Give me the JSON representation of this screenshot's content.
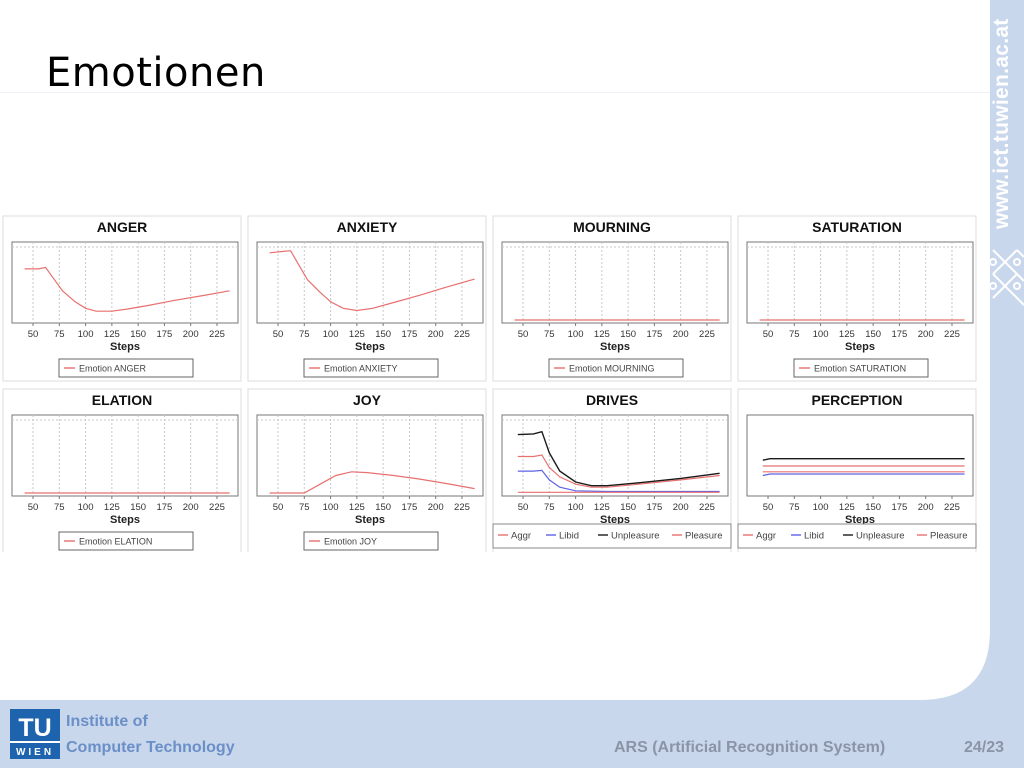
{
  "slide": {
    "title": "Emotionen",
    "side_url": "www.ict.tuwien.ac.at",
    "footer": {
      "institute_line1": "Institute of",
      "institute_line2": "Computer Technology",
      "system": "ARS (Artificial Recognition System)",
      "page": "24/23",
      "logo_text_top": "TU",
      "logo_text_bottom": "WIEN"
    }
  },
  "colors": {
    "accent": "#c9d7ec",
    "footer_text": "#6b8fc7",
    "series_red": "#e8706f",
    "series_blue": "#5c63e6",
    "series_black": "#1a1a1a"
  },
  "chart_data": [
    {
      "type": "line",
      "title": "ANGER",
      "xlabel": "Steps",
      "ticks": [
        50,
        75,
        100,
        125,
        150,
        175,
        200,
        225
      ],
      "xlim": [
        30,
        245
      ],
      "ylim": [
        0,
        1
      ],
      "grid": true,
      "legend_position": "bottom",
      "series": [
        {
          "name": "Emotion ANGER",
          "color": "#e8706f",
          "points": [
            [
              42,
              0.7
            ],
            [
              55,
              0.7
            ],
            [
              62,
              0.72
            ],
            [
              68,
              0.6
            ],
            [
              78,
              0.4
            ],
            [
              90,
              0.25
            ],
            [
              100,
              0.16
            ],
            [
              110,
              0.12
            ],
            [
              125,
              0.12
            ],
            [
              140,
              0.15
            ],
            [
              160,
              0.2
            ],
            [
              185,
              0.27
            ],
            [
              210,
              0.33
            ],
            [
              237,
              0.4
            ]
          ]
        }
      ]
    },
    {
      "type": "line",
      "title": "ANXIETY",
      "xlabel": "Steps",
      "ticks": [
        50,
        75,
        100,
        125,
        150,
        175,
        200,
        225
      ],
      "xlim": [
        30,
        245
      ],
      "ylim": [
        0,
        1
      ],
      "grid": true,
      "legend_position": "bottom",
      "series": [
        {
          "name": "Emotion ANXIETY",
          "color": "#e8706f",
          "points": [
            [
              42,
              0.92
            ],
            [
              55,
              0.94
            ],
            [
              62,
              0.95
            ],
            [
              70,
              0.75
            ],
            [
              78,
              0.55
            ],
            [
              90,
              0.38
            ],
            [
              100,
              0.25
            ],
            [
              112,
              0.16
            ],
            [
              125,
              0.13
            ],
            [
              140,
              0.16
            ],
            [
              160,
              0.24
            ],
            [
              185,
              0.34
            ],
            [
              210,
              0.45
            ],
            [
              237,
              0.56
            ]
          ]
        }
      ]
    },
    {
      "type": "line",
      "title": "MOURNING",
      "xlabel": "Steps",
      "ticks": [
        50,
        75,
        100,
        125,
        150,
        175,
        200,
        225
      ],
      "xlim": [
        30,
        245
      ],
      "ylim": [
        0,
        1
      ],
      "grid": true,
      "legend_position": "bottom",
      "series": [
        {
          "name": "Emotion MOURNING",
          "color": "#e8706f",
          "points": [
            [
              42,
              0
            ],
            [
              237,
              0
            ]
          ]
        }
      ]
    },
    {
      "type": "line",
      "title": "SATURATION",
      "xlabel": "Steps",
      "ticks": [
        50,
        75,
        100,
        125,
        150,
        175,
        200,
        225
      ],
      "xlim": [
        30,
        245
      ],
      "ylim": [
        0,
        1
      ],
      "grid": true,
      "legend_position": "bottom",
      "series": [
        {
          "name": "Emotion SATURATION",
          "color": "#e8706f",
          "points": [
            [
              42,
              0
            ],
            [
              237,
              0
            ]
          ]
        }
      ]
    },
    {
      "type": "line",
      "title": "ELATION",
      "xlabel": "Steps",
      "ticks": [
        50,
        75,
        100,
        125,
        150,
        175,
        200,
        225
      ],
      "xlim": [
        30,
        245
      ],
      "ylim": [
        0,
        1
      ],
      "grid": true,
      "legend_position": "bottom",
      "series": [
        {
          "name": "Emotion ELATION",
          "color": "#e8706f",
          "points": [
            [
              42,
              0
            ],
            [
              237,
              0
            ]
          ]
        }
      ]
    },
    {
      "type": "line",
      "title": "JOY",
      "xlabel": "Steps",
      "ticks": [
        50,
        75,
        100,
        125,
        150,
        175,
        200,
        225
      ],
      "xlim": [
        30,
        245
      ],
      "ylim": [
        0,
        1
      ],
      "grid": true,
      "legend_position": "bottom",
      "series": [
        {
          "name": "Emotion JOY",
          "color": "#e8706f",
          "points": [
            [
              42,
              0
            ],
            [
              75,
              0
            ],
            [
              90,
              0.12
            ],
            [
              105,
              0.24
            ],
            [
              120,
              0.29
            ],
            [
              135,
              0.28
            ],
            [
              160,
              0.24
            ],
            [
              185,
              0.19
            ],
            [
              210,
              0.13
            ],
            [
              237,
              0.06
            ]
          ]
        }
      ]
    },
    {
      "type": "line",
      "title": "DRIVES",
      "xlabel": "Steps",
      "ticks": [
        50,
        75,
        100,
        125,
        150,
        175,
        200,
        225
      ],
      "xlim": [
        30,
        245
      ],
      "ylim": [
        0,
        1
      ],
      "grid": true,
      "legend_position": "bottom",
      "series": [
        {
          "name": "Aggr",
          "color": "#e8706f",
          "points": [
            [
              45,
              0.5
            ],
            [
              60,
              0.5
            ],
            [
              68,
              0.52
            ],
            [
              75,
              0.35
            ],
            [
              85,
              0.22
            ],
            [
              100,
              0.12
            ],
            [
              115,
              0.08
            ],
            [
              130,
              0.08
            ],
            [
              160,
              0.12
            ],
            [
              200,
              0.18
            ],
            [
              237,
              0.24
            ]
          ]
        },
        {
          "name": "Libid",
          "color": "#5c63e6",
          "points": [
            [
              45,
              0.3
            ],
            [
              60,
              0.3
            ],
            [
              68,
              0.31
            ],
            [
              75,
              0.18
            ],
            [
              85,
              0.08
            ],
            [
              100,
              0.03
            ],
            [
              130,
              0.02
            ],
            [
              237,
              0.02
            ]
          ]
        },
        {
          "name": "Unpleasure",
          "color": "#1a1a1a",
          "points": [
            [
              45,
              0.8
            ],
            [
              60,
              0.81
            ],
            [
              68,
              0.84
            ],
            [
              75,
              0.55
            ],
            [
              85,
              0.3
            ],
            [
              100,
              0.15
            ],
            [
              115,
              0.1
            ],
            [
              130,
              0.1
            ],
            [
              160,
              0.14
            ],
            [
              200,
              0.2
            ],
            [
              237,
              0.27
            ]
          ]
        },
        {
          "name": "Pleasure",
          "color": "#e8706f",
          "points": [
            [
              45,
              0.01
            ],
            [
              237,
              0.01
            ]
          ]
        }
      ]
    },
    {
      "type": "line",
      "title": "PERCEPTION",
      "xlabel": "Steps",
      "ticks": [
        50,
        75,
        100,
        125,
        150,
        175,
        200,
        225
      ],
      "xlim": [
        30,
        245
      ],
      "ylim": [
        0,
        1
      ],
      "grid": false,
      "legend_position": "bottom",
      "series": [
        {
          "name": "Aggr",
          "color": "#e8706f",
          "points": [
            [
              45,
              0.37
            ],
            [
              237,
              0.37
            ]
          ]
        },
        {
          "name": "Libid",
          "color": "#5c63e6",
          "points": [
            [
              45,
              0.24
            ],
            [
              52,
              0.26
            ],
            [
              237,
              0.26
            ]
          ]
        },
        {
          "name": "Unpleasure",
          "color": "#1a1a1a",
          "points": [
            [
              45,
              0.45
            ],
            [
              52,
              0.47
            ],
            [
              237,
              0.47
            ]
          ]
        },
        {
          "name": "Pleasure",
          "color": "#e8706f",
          "points": [
            [
              45,
              0.29
            ],
            [
              237,
              0.29
            ]
          ]
        }
      ]
    }
  ]
}
